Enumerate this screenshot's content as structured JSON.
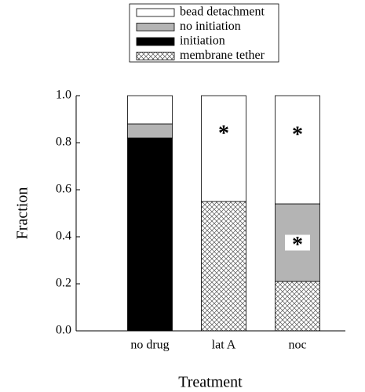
{
  "chart_data": {
    "type": "stacked_bar",
    "categories": [
      "no drug",
      "lat A",
      "noc"
    ],
    "series": [
      {
        "name": "membrane tether",
        "color": "#ffffff",
        "pattern": "crosshatch",
        "values": [
          0,
          0.55,
          0.21
        ]
      },
      {
        "name": "initiation",
        "color": "#000000",
        "values": [
          0.82,
          0,
          0
        ]
      },
      {
        "name": "no initiation",
        "color": "#b4b4b4",
        "values": [
          0.06,
          0,
          0.33
        ]
      },
      {
        "name": "bead detachment",
        "color": "#ffffff",
        "values": [
          0.12,
          0.45,
          0.46
        ]
      }
    ],
    "ylim": [
      0,
      1
    ],
    "yticks": [
      {
        "value": 0,
        "label": "0.0"
      },
      {
        "value": 0.2,
        "label": "0.2"
      },
      {
        "value": 0.4,
        "label": "0.4"
      },
      {
        "value": 0.6,
        "label": "0.6"
      },
      {
        "value": 0.8,
        "label": "0.8"
      },
      {
        "value": 1,
        "label": "1.0"
      }
    ],
    "y_label": "Fraction",
    "x_label": "Treatment",
    "legend_position": "top",
    "annotations": [
      {
        "text": "*",
        "category": "lat A",
        "series": "bead detachment"
      },
      {
        "text": "*",
        "category": "noc",
        "series": "bead detachment"
      },
      {
        "text": "*",
        "category": "noc",
        "series": "no initiation",
        "boxed": true
      }
    ]
  }
}
